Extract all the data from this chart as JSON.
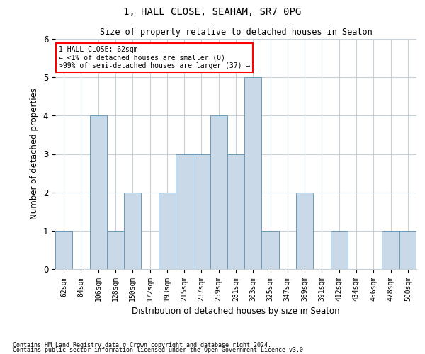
{
  "title1": "1, HALL CLOSE, SEAHAM, SR7 0PG",
  "title2": "Size of property relative to detached houses in Seaton",
  "xlabel": "Distribution of detached houses by size in Seaton",
  "ylabel": "Number of detached properties",
  "categories": [
    "62sqm",
    "84sqm",
    "106sqm",
    "128sqm",
    "150sqm",
    "172sqm",
    "193sqm",
    "215sqm",
    "237sqm",
    "259sqm",
    "281sqm",
    "303sqm",
    "325sqm",
    "347sqm",
    "369sqm",
    "391sqm",
    "412sqm",
    "434sqm",
    "456sqm",
    "478sqm",
    "500sqm"
  ],
  "values": [
    1,
    0,
    4,
    1,
    2,
    0,
    2,
    3,
    3,
    4,
    3,
    5,
    1,
    0,
    2,
    0,
    1,
    0,
    0,
    1,
    1
  ],
  "bar_color": "#c9d9e8",
  "bar_edge_color": "#6b9ab8",
  "annotation_text": "1 HALL CLOSE: 62sqm\n← <1% of detached houses are smaller (0)\n>99% of semi-detached houses are larger (37) →",
  "annotation_box_color": "#ff0000",
  "ylim": [
    0,
    6
  ],
  "yticks": [
    0,
    1,
    2,
    3,
    4,
    5,
    6
  ],
  "footer1": "Contains HM Land Registry data © Crown copyright and database right 2024.",
  "footer2": "Contains public sector information licensed under the Open Government Licence v3.0.",
  "background_color": "#ffffff",
  "grid_color": "#c8d0d8"
}
